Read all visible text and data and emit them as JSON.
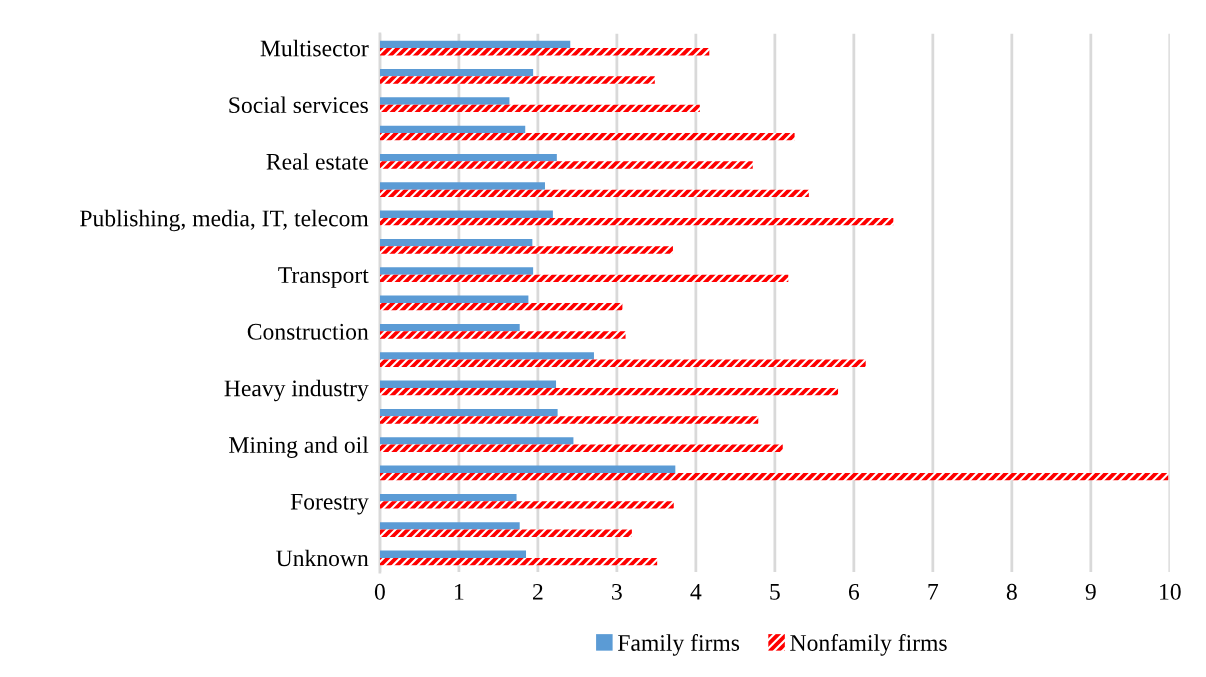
{
  "chart_data": {
    "type": "bar",
    "orientation": "horizontal",
    "categories": [
      "Multisector",
      null,
      "Social services",
      null,
      "Real estate",
      null,
      "Publishing, media, IT, telecom",
      null,
      "Transport",
      null,
      "Construction",
      null,
      "Heavy industry",
      null,
      "Mining and oil",
      null,
      "Forestry",
      null,
      "Unknown"
    ],
    "series": [
      {
        "name": "Family firms",
        "color": "#5b9bd5",
        "values": [
          2.41,
          1.94,
          1.64,
          1.84,
          2.24,
          2.09,
          2.19,
          1.93,
          1.94,
          1.88,
          1.77,
          2.71,
          2.23,
          2.25,
          2.45,
          3.74,
          1.73,
          1.77,
          1.85
        ]
      },
      {
        "name": "Nonfamily firms",
        "color": "#ff0000",
        "values": [
          4.17,
          3.48,
          4.05,
          5.25,
          4.72,
          5.43,
          6.5,
          3.71,
          5.17,
          3.07,
          3.11,
          6.15,
          5.8,
          4.79,
          5.1,
          9.98,
          3.72,
          3.19,
          3.51
        ]
      }
    ],
    "xlim": [
      0,
      10
    ],
    "xticks": [
      0,
      1,
      2,
      3,
      4,
      5,
      6,
      7,
      8,
      9,
      10
    ],
    "grid": "x",
    "legend": "bottom"
  }
}
